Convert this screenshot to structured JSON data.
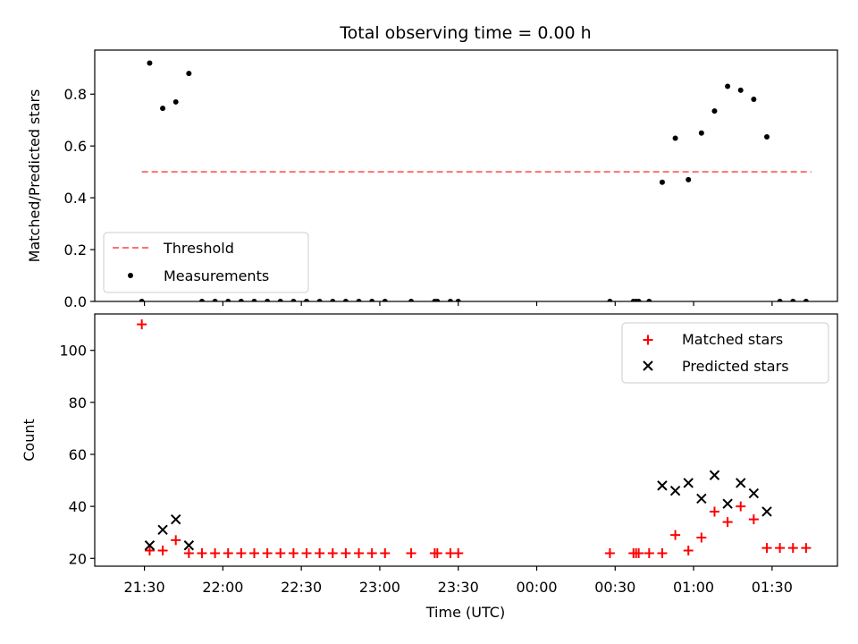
{
  "chart_data": [
    {
      "type": "scatter",
      "title": "Total observing time = 0.00 h",
      "xlabel": "",
      "ylabel": "Matched/Predicted stars",
      "ylim": [
        0,
        0.97
      ],
      "yticks": [
        0.0,
        0.2,
        0.4,
        0.6,
        0.8
      ],
      "ytick_labels": [
        "0.0",
        "0.2",
        "0.4",
        "0.6",
        "0.8"
      ],
      "xlim": [
        "21:11",
        "01:55"
      ],
      "legend": {
        "placement": "lower-left",
        "entries": [
          "Threshold",
          "Measurements"
        ]
      },
      "threshold": {
        "name": "Threshold",
        "value": 0.5,
        "x_start": "21:29",
        "x_end": "01:45",
        "color": "#ff7070"
      },
      "series": [
        {
          "name": "Measurements",
          "marker": "dot",
          "color": "#000000",
          "points": [
            [
              "21:29",
              0.0
            ],
            [
              "21:32",
              0.92
            ],
            [
              "21:37",
              0.745
            ],
            [
              "21:42",
              0.77
            ],
            [
              "21:47",
              0.88
            ],
            [
              "21:52",
              0.0
            ],
            [
              "21:57",
              0.0
            ],
            [
              "22:02",
              0.0
            ],
            [
              "22:07",
              0.0
            ],
            [
              "22:12",
              0.0
            ],
            [
              "22:17",
              0.0
            ],
            [
              "22:22",
              0.0
            ],
            [
              "22:27",
              0.0
            ],
            [
              "22:32",
              0.0
            ],
            [
              "22:37",
              0.0
            ],
            [
              "22:42",
              0.0
            ],
            [
              "22:47",
              0.0
            ],
            [
              "22:52",
              0.0
            ],
            [
              "22:57",
              0.0
            ],
            [
              "23:02",
              0.0
            ],
            [
              "23:12",
              0.0
            ],
            [
              "23:21",
              0.0
            ],
            [
              "23:22",
              0.0
            ],
            [
              "23:27",
              0.0
            ],
            [
              "23:30",
              0.0
            ],
            [
              "00:28",
              0.0
            ],
            [
              "00:37",
              0.0
            ],
            [
              "00:38",
              0.0
            ],
            [
              "00:39",
              0.0
            ],
            [
              "00:43",
              0.0
            ],
            [
              "00:48",
              0.46
            ],
            [
              "00:53",
              0.63
            ],
            [
              "00:58",
              0.47
            ],
            [
              "01:03",
              0.65
            ],
            [
              "01:08",
              0.735
            ],
            [
              "01:13",
              0.83
            ],
            [
              "01:18",
              0.815
            ],
            [
              "01:23",
              0.78
            ],
            [
              "01:28",
              0.635
            ],
            [
              "01:33",
              0.0
            ],
            [
              "01:38",
              0.0
            ],
            [
              "01:43",
              0.0
            ]
          ]
        }
      ]
    },
    {
      "type": "scatter",
      "title": "",
      "xlabel": "Time (UTC)",
      "ylabel": "Count",
      "ylim": [
        17,
        114
      ],
      "yticks": [
        20,
        40,
        60,
        80,
        100
      ],
      "ytick_labels": [
        "20",
        "40",
        "60",
        "80",
        "100"
      ],
      "xlim": [
        "21:11",
        "01:55"
      ],
      "xticks": [
        "21:30",
        "22:00",
        "22:30",
        "23:00",
        "23:30",
        "00:00",
        "00:30",
        "01:00",
        "01:30"
      ],
      "legend": {
        "placement": "top-right",
        "entries": [
          "Matched stars",
          "Predicted stars"
        ]
      },
      "series": [
        {
          "name": "Matched stars",
          "marker": "plus",
          "color": "#ff0000",
          "points": [
            [
              "21:29",
              110
            ],
            [
              "21:32",
              23
            ],
            [
              "21:37",
              23
            ],
            [
              "21:42",
              27
            ],
            [
              "21:47",
              22
            ],
            [
              "21:52",
              22
            ],
            [
              "21:57",
              22
            ],
            [
              "22:02",
              22
            ],
            [
              "22:07",
              22
            ],
            [
              "22:12",
              22
            ],
            [
              "22:17",
              22
            ],
            [
              "22:22",
              22
            ],
            [
              "22:27",
              22
            ],
            [
              "22:32",
              22
            ],
            [
              "22:37",
              22
            ],
            [
              "22:42",
              22
            ],
            [
              "22:47",
              22
            ],
            [
              "22:52",
              22
            ],
            [
              "22:57",
              22
            ],
            [
              "23:02",
              22
            ],
            [
              "23:12",
              22
            ],
            [
              "23:21",
              22
            ],
            [
              "23:22",
              22
            ],
            [
              "23:27",
              22
            ],
            [
              "23:30",
              22
            ],
            [
              "00:28",
              22
            ],
            [
              "00:37",
              22
            ],
            [
              "00:38",
              22
            ],
            [
              "00:39",
              22
            ],
            [
              "00:43",
              22
            ],
            [
              "00:48",
              22
            ],
            [
              "00:53",
              29
            ],
            [
              "00:58",
              23
            ],
            [
              "01:03",
              28
            ],
            [
              "01:08",
              38
            ],
            [
              "01:13",
              34
            ],
            [
              "01:18",
              40
            ],
            [
              "01:23",
              35
            ],
            [
              "01:28",
              24
            ],
            [
              "01:33",
              24
            ],
            [
              "01:38",
              24
            ],
            [
              "01:43",
              24
            ]
          ]
        },
        {
          "name": "Predicted stars",
          "marker": "x",
          "color": "#000000",
          "points": [
            [
              "21:32",
              25
            ],
            [
              "21:37",
              31
            ],
            [
              "21:42",
              35
            ],
            [
              "21:47",
              25
            ],
            [
              "00:48",
              48
            ],
            [
              "00:53",
              46
            ],
            [
              "00:58",
              49
            ],
            [
              "01:03",
              43
            ],
            [
              "01:08",
              52
            ],
            [
              "01:13",
              41
            ],
            [
              "01:18",
              49
            ],
            [
              "01:23",
              45
            ],
            [
              "01:28",
              38
            ]
          ]
        }
      ]
    }
  ]
}
